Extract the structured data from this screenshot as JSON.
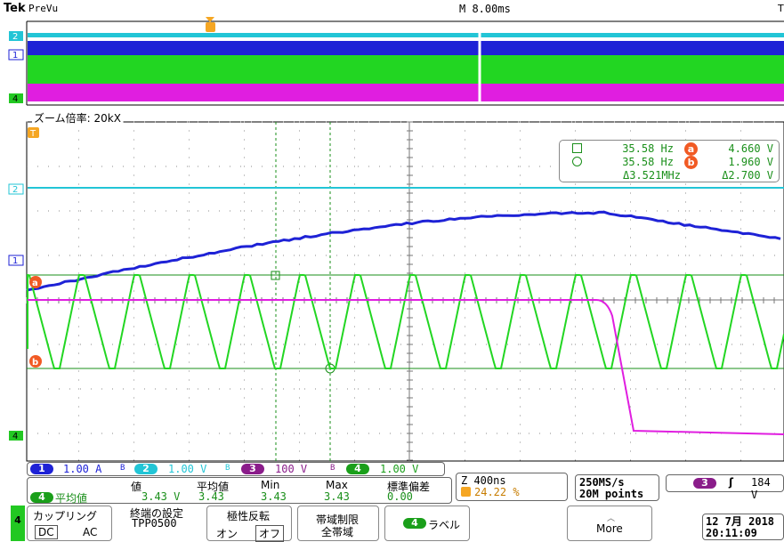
{
  "header": {
    "brand": "Tek",
    "mode": "PreVu",
    "timebase": "M 8.00ms",
    "timebase_right": "T"
  },
  "zoom_label": "ズーム倍率: 20kX",
  "markers": {
    "ch1": "1",
    "ch2": "2",
    "ch4": "4",
    "trigger": "T",
    "cursor_a": "a",
    "cursor_b": "b"
  },
  "cursor_readout": {
    "row1": {
      "freq": "35.58 Hz",
      "badge": "a",
      "volt": "4.660 V"
    },
    "row2": {
      "freq": "35.58 Hz",
      "badge": "b",
      "volt": "1.960 V"
    },
    "row3": {
      "delta_freq": "Δ3.521MHz",
      "delta_volt": "Δ2.700 V"
    }
  },
  "channels": [
    {
      "id": "1",
      "value": "1.00 A",
      "color": "#1e22d6"
    },
    {
      "id": "2",
      "value": "1.00 V",
      "color": "#22c5d6"
    },
    {
      "id": "3",
      "value": "100 V",
      "color": "#8a1c8a"
    },
    {
      "id": "4",
      "value": "1.00 V",
      "color": "#22c822"
    }
  ],
  "bw_symbol": "B",
  "measurement": {
    "source_badge": "4",
    "name": "平均値",
    "headers": {
      "value": "値",
      "mean": "平均値",
      "min": "Min",
      "max": "Max",
      "std": "標準偏差"
    },
    "values": {
      "value": "3.43 V",
      "mean": "3.43",
      "min": "3.43",
      "max": "3.43",
      "std": "0.00"
    }
  },
  "zoom_info": {
    "scale": "Z 400ns",
    "trigger_pos": "24.22 %"
  },
  "sample_rate": {
    "rate": "250MS/s",
    "points": "20M points"
  },
  "trigger": {
    "source": "3",
    "slope": "ʃ",
    "level": "184 V"
  },
  "menu": {
    "channel": "4",
    "coupling": {
      "label": "カップリング",
      "dc": "DC",
      "ac": "AC"
    },
    "termination": {
      "label": "終端の設定",
      "value": "TPP0500"
    },
    "invert": {
      "label": "極性反転",
      "on": "オン",
      "off": "オフ"
    },
    "bandwidth": {
      "label": "帯域制限",
      "value": "全帯域"
    },
    "label_btn": {
      "badge": "4",
      "label": "ラベル"
    },
    "more": "More"
  },
  "datetime": {
    "date": "12 7月  2018",
    "time": "20:11:09"
  },
  "colors": {
    "ch1": "#1e22d6",
    "ch2": "#22c5d6",
    "ch3": "#e01ee0",
    "ch4": "#22d622",
    "cursor": "#1a8f1a",
    "badge": "#f15a24"
  }
}
